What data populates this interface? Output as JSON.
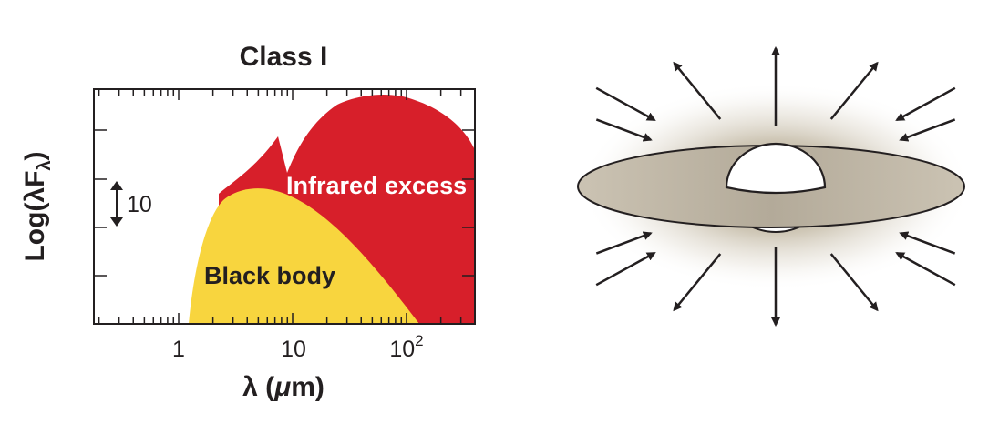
{
  "sed_panel": {
    "title": "Class I",
    "ylabel": "Log(λF",
    "ylabel_sub": "λ",
    "ylabel_close": ")",
    "scale_bar_label": "10",
    "x_ticks": [
      "1",
      "10",
      "10"
    ],
    "x_tick_exponent": "2",
    "xlabel_main": "λ (",
    "xlabel_mu": "μ",
    "xlabel_end": "m)",
    "infrared_label": "Infrared excess",
    "blackbody_label": "Black body",
    "colors": {
      "infrared_excess": "#d71f2a",
      "black_body": "#f8d53e",
      "axis": "#231f20"
    }
  },
  "protostar_illustration": {
    "colors": {
      "disk_center": "#a9a08f",
      "disk_edge": "#c8bfae",
      "envelope_glow": "#8a7a5a",
      "arrows": "#231f20",
      "star": "#ffffff"
    }
  }
}
